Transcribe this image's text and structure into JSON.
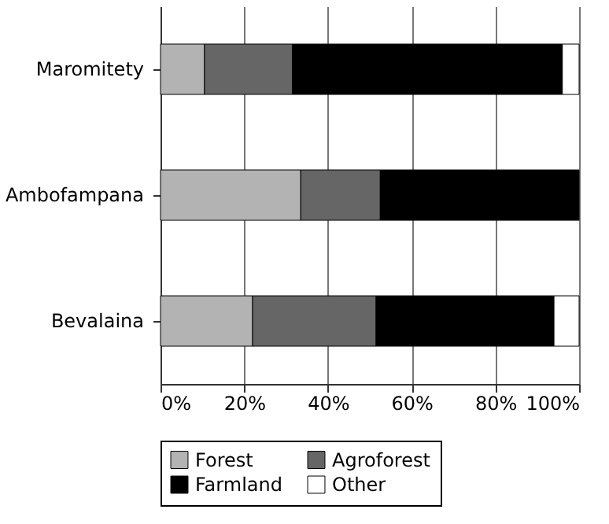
{
  "chart_data": {
    "type": "bar",
    "orientation": "horizontal",
    "stacked": true,
    "categories": [
      "Maromitety",
      "Ambofampana",
      "Bevalaina"
    ],
    "series": [
      {
        "name": "Forest",
        "color": "#b3b3b3",
        "values": [
          10.5,
          33.5,
          22
        ]
      },
      {
        "name": "Agroforest",
        "color": "#666666",
        "values": [
          21,
          19,
          29.5
        ]
      },
      {
        "name": "Farmland",
        "color": "#000000",
        "values": [
          64.5,
          47.5,
          42.5
        ]
      },
      {
        "name": "Other",
        "color": "#ffffff",
        "values": [
          4,
          null,
          6
        ]
      }
    ],
    "xlim": [
      0,
      100
    ],
    "xticks": [
      {
        "value": 0,
        "label": "0%"
      },
      {
        "value": 20,
        "label": "20%"
      },
      {
        "value": 40,
        "label": "40%"
      },
      {
        "value": 60,
        "label": "60%"
      },
      {
        "value": 80,
        "label": "80%"
      },
      {
        "value": 100,
        "label": "100%"
      }
    ],
    "grid": "x",
    "legend": "bottom"
  }
}
